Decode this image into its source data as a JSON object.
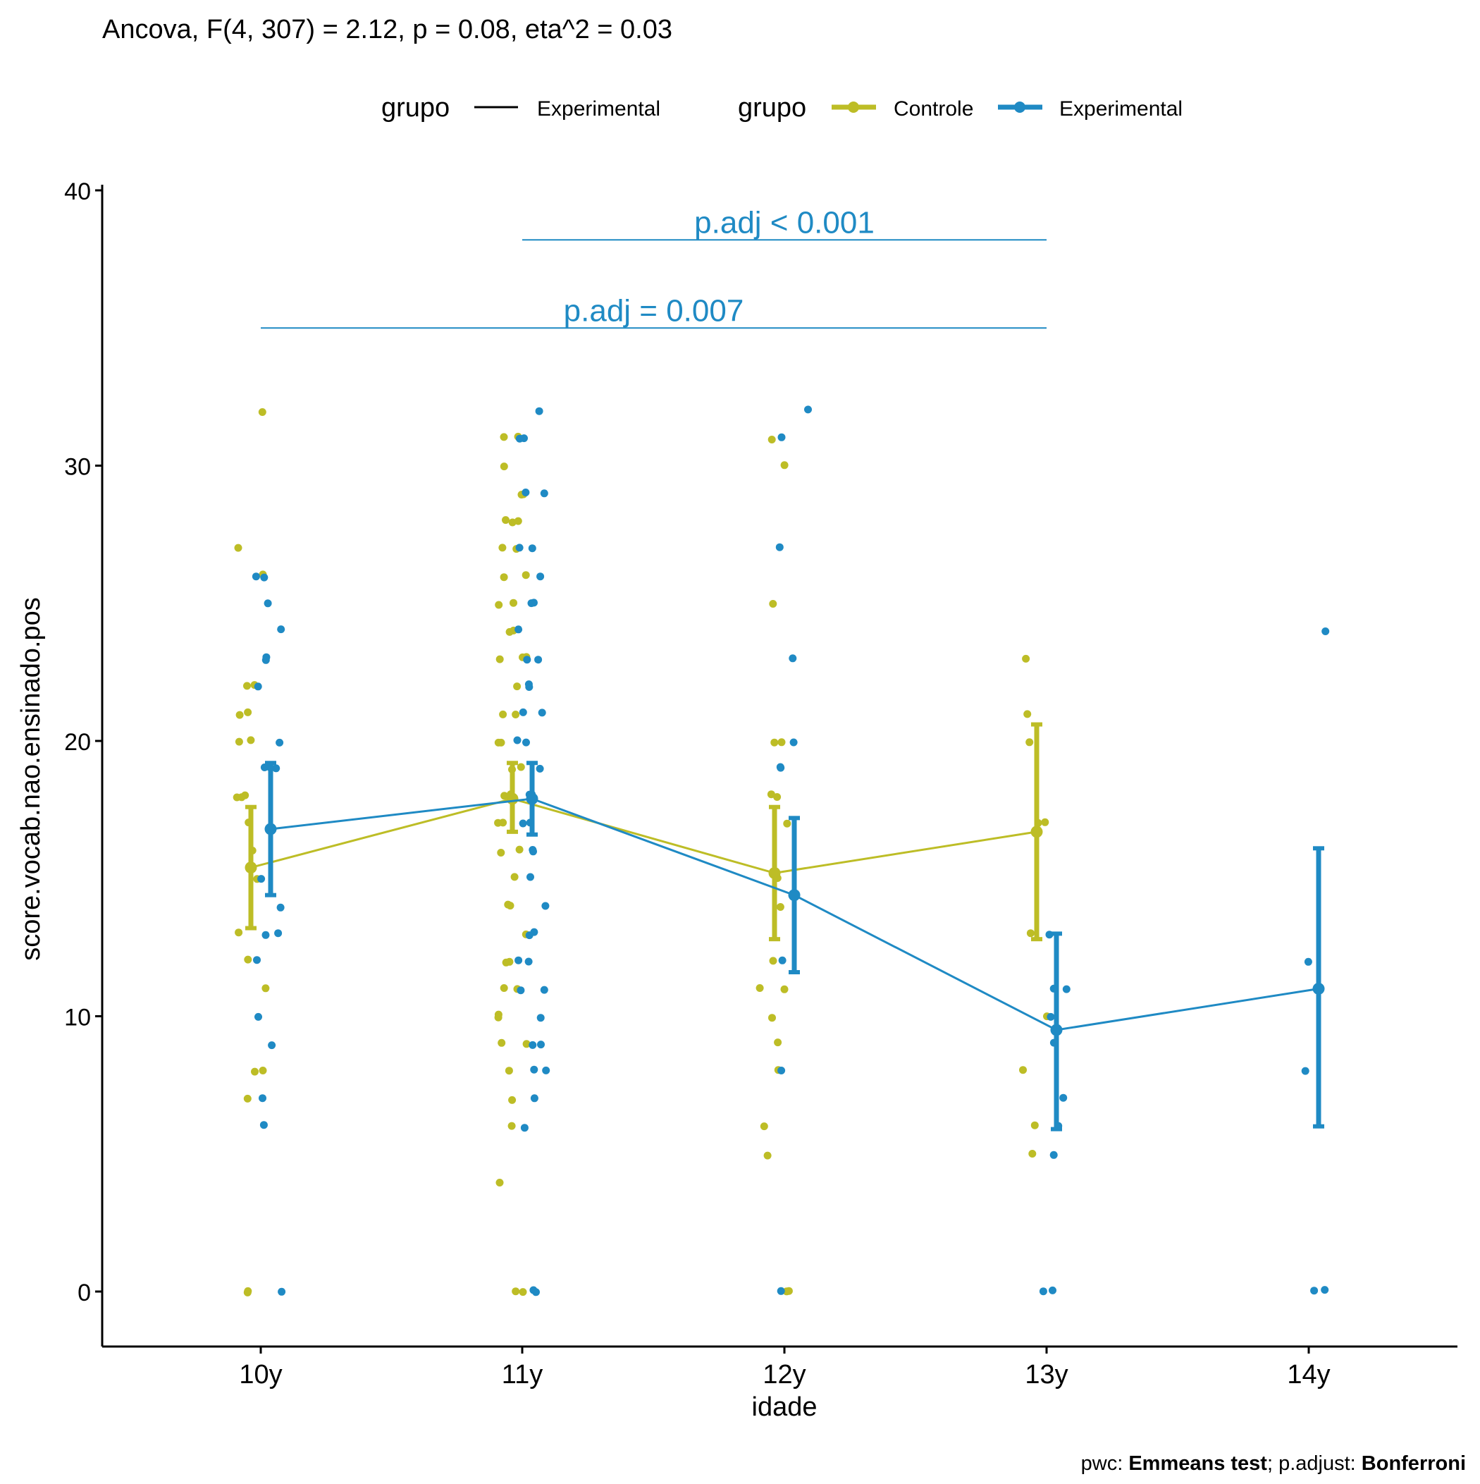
{
  "title": "Ancova, F(4, 307) = 2.12, p = 0.08, eta^2 = 0.03",
  "caption": {
    "prefix": "pwc: ",
    "test": "Emmeans test",
    "middle": "; p.adjust: ",
    "method": "Bonferroni"
  },
  "legend": {
    "line_legend": {
      "title": "grupo",
      "items": [
        {
          "label": "Experimental"
        }
      ]
    },
    "group_legend": {
      "title": "grupo",
      "items": [
        {
          "label": "Controle"
        },
        {
          "label": "Experimental"
        }
      ]
    },
    "position": "top"
  },
  "colors": {
    "controle": "#BDBD26",
    "experimental": "#1F8AC4",
    "axis": "#000000",
    "legend_line": "#000000"
  },
  "chart_data": {
    "type": "line",
    "xlabel": "idade",
    "ylabel": "score.vocab.nao.ensinado.pos",
    "categories": [
      "10y",
      "11y",
      "12y",
      "13y",
      "14y"
    ],
    "ylim": [
      -2,
      40
    ],
    "yticks": [
      0,
      10,
      20,
      30,
      40
    ],
    "grid": false,
    "series": [
      {
        "name": "Controle",
        "means": [
          15.4,
          17.9,
          15.2,
          16.7,
          null
        ],
        "ci_lower": [
          13.2,
          16.7,
          12.8,
          12.8,
          null
        ],
        "ci_upper": [
          17.6,
          19.2,
          17.6,
          20.6,
          null
        ]
      },
      {
        "name": "Experimental",
        "means": [
          16.8,
          17.9,
          14.4,
          9.5,
          11.0
        ],
        "ci_lower": [
          14.4,
          16.6,
          11.6,
          5.9,
          6.0
        ],
        "ci_upper": [
          19.2,
          19.2,
          17.2,
          13.0,
          16.1
        ]
      }
    ],
    "points": {
      "Controle": [
        [
          0,
          32
        ],
        [
          0,
          27
        ],
        [
          0,
          26
        ],
        [
          0,
          22
        ],
        [
          0,
          22
        ],
        [
          0,
          21
        ],
        [
          0,
          21
        ],
        [
          0,
          20
        ],
        [
          0,
          20
        ],
        [
          0,
          18
        ],
        [
          0,
          18
        ],
        [
          0,
          18
        ],
        [
          0,
          17
        ],
        [
          0,
          16
        ],
        [
          0,
          15
        ],
        [
          0,
          13
        ],
        [
          0,
          12
        ],
        [
          0,
          11
        ],
        [
          0,
          8
        ],
        [
          0,
          8
        ],
        [
          0,
          7
        ],
        [
          0,
          0
        ],
        [
          0,
          0
        ],
        [
          1,
          31
        ],
        [
          1,
          31
        ],
        [
          1,
          30
        ],
        [
          1,
          29
        ],
        [
          1,
          29
        ],
        [
          1,
          28
        ],
        [
          1,
          28
        ],
        [
          1,
          28
        ],
        [
          1,
          27
        ],
        [
          1,
          27
        ],
        [
          1,
          26
        ],
        [
          1,
          26
        ],
        [
          1,
          25
        ],
        [
          1,
          25
        ],
        [
          1,
          24
        ],
        [
          1,
          24
        ],
        [
          1,
          23
        ],
        [
          1,
          23
        ],
        [
          1,
          23
        ],
        [
          1,
          22
        ],
        [
          1,
          21
        ],
        [
          1,
          21
        ],
        [
          1,
          20
        ],
        [
          1,
          20
        ],
        [
          1,
          19
        ],
        [
          1,
          19
        ],
        [
          1,
          18
        ],
        [
          1,
          18
        ],
        [
          1,
          17
        ],
        [
          1,
          17
        ],
        [
          1,
          16
        ],
        [
          1,
          16
        ],
        [
          1,
          15
        ],
        [
          1,
          14
        ],
        [
          1,
          14
        ],
        [
          1,
          13
        ],
        [
          1,
          12
        ],
        [
          1,
          12
        ],
        [
          1,
          11
        ],
        [
          1,
          11
        ],
        [
          1,
          10
        ],
        [
          1,
          10
        ],
        [
          1,
          9
        ],
        [
          1,
          9
        ],
        [
          1,
          8
        ],
        [
          1,
          7
        ],
        [
          1,
          6
        ],
        [
          1,
          4
        ],
        [
          1,
          0
        ],
        [
          1,
          0
        ],
        [
          2,
          31
        ],
        [
          2,
          30
        ],
        [
          2,
          25
        ],
        [
          2,
          20
        ],
        [
          2,
          20
        ],
        [
          2,
          18
        ],
        [
          2,
          18
        ],
        [
          2,
          17
        ],
        [
          2,
          15
        ],
        [
          2,
          14
        ],
        [
          2,
          12
        ],
        [
          2,
          11
        ],
        [
          2,
          11
        ],
        [
          2,
          10
        ],
        [
          2,
          9
        ],
        [
          2,
          8
        ],
        [
          2,
          6
        ],
        [
          2,
          5
        ],
        [
          2,
          0
        ],
        [
          2,
          0
        ],
        [
          3,
          23
        ],
        [
          3,
          21
        ],
        [
          3,
          20
        ],
        [
          3,
          17
        ],
        [
          3,
          17
        ],
        [
          3,
          13
        ],
        [
          3,
          10
        ],
        [
          3,
          8
        ],
        [
          3,
          6
        ],
        [
          3,
          5
        ]
      ],
      "Experimental": [
        [
          0,
          26
        ],
        [
          0,
          26
        ],
        [
          0,
          25
        ],
        [
          0,
          24
        ],
        [
          0,
          23
        ],
        [
          0,
          23
        ],
        [
          0,
          22
        ],
        [
          0,
          20
        ],
        [
          0,
          19
        ],
        [
          0,
          19
        ],
        [
          0,
          19
        ],
        [
          0,
          15
        ],
        [
          0,
          14
        ],
        [
          0,
          13
        ],
        [
          0,
          13
        ],
        [
          0,
          12
        ],
        [
          0,
          10
        ],
        [
          0,
          9
        ],
        [
          0,
          7
        ],
        [
          0,
          6
        ],
        [
          0,
          0
        ],
        [
          1,
          32
        ],
        [
          1,
          31
        ],
        [
          1,
          31
        ],
        [
          1,
          29
        ],
        [
          1,
          29
        ],
        [
          1,
          27
        ],
        [
          1,
          27
        ],
        [
          1,
          26
        ],
        [
          1,
          25
        ],
        [
          1,
          25
        ],
        [
          1,
          24
        ],
        [
          1,
          23
        ],
        [
          1,
          23
        ],
        [
          1,
          22
        ],
        [
          1,
          22
        ],
        [
          1,
          21
        ],
        [
          1,
          21
        ],
        [
          1,
          20
        ],
        [
          1,
          20
        ],
        [
          1,
          19
        ],
        [
          1,
          18
        ],
        [
          1,
          18
        ],
        [
          1,
          17
        ],
        [
          1,
          17
        ],
        [
          1,
          16
        ],
        [
          1,
          16
        ],
        [
          1,
          15
        ],
        [
          1,
          14
        ],
        [
          1,
          13
        ],
        [
          1,
          13
        ],
        [
          1,
          12
        ],
        [
          1,
          12
        ],
        [
          1,
          11
        ],
        [
          1,
          11
        ],
        [
          1,
          10
        ],
        [
          1,
          9
        ],
        [
          1,
          9
        ],
        [
          1,
          8
        ],
        [
          1,
          8
        ],
        [
          1,
          7
        ],
        [
          1,
          6
        ],
        [
          1,
          0
        ],
        [
          1,
          0
        ],
        [
          2,
          32
        ],
        [
          2,
          31
        ],
        [
          2,
          27
        ],
        [
          2,
          23
        ],
        [
          2,
          20
        ],
        [
          2,
          19
        ],
        [
          2,
          19
        ],
        [
          2,
          12
        ],
        [
          2,
          8
        ],
        [
          2,
          0
        ],
        [
          3,
          13
        ],
        [
          3,
          11
        ],
        [
          3,
          11
        ],
        [
          3,
          10
        ],
        [
          3,
          9
        ],
        [
          3,
          7
        ],
        [
          3,
          6
        ],
        [
          3,
          5
        ],
        [
          3,
          0
        ],
        [
          3,
          0
        ],
        [
          4,
          24
        ],
        [
          4,
          12
        ],
        [
          4,
          8
        ],
        [
          4,
          0
        ],
        [
          4,
          0
        ]
      ]
    },
    "comparisons": [
      {
        "from": "11y",
        "to": "13y",
        "y": 38.2,
        "label": "p.adj < 0.001"
      },
      {
        "from": "10y",
        "to": "13y",
        "y": 35.0,
        "label": "p.adj = 0.007"
      }
    ]
  }
}
